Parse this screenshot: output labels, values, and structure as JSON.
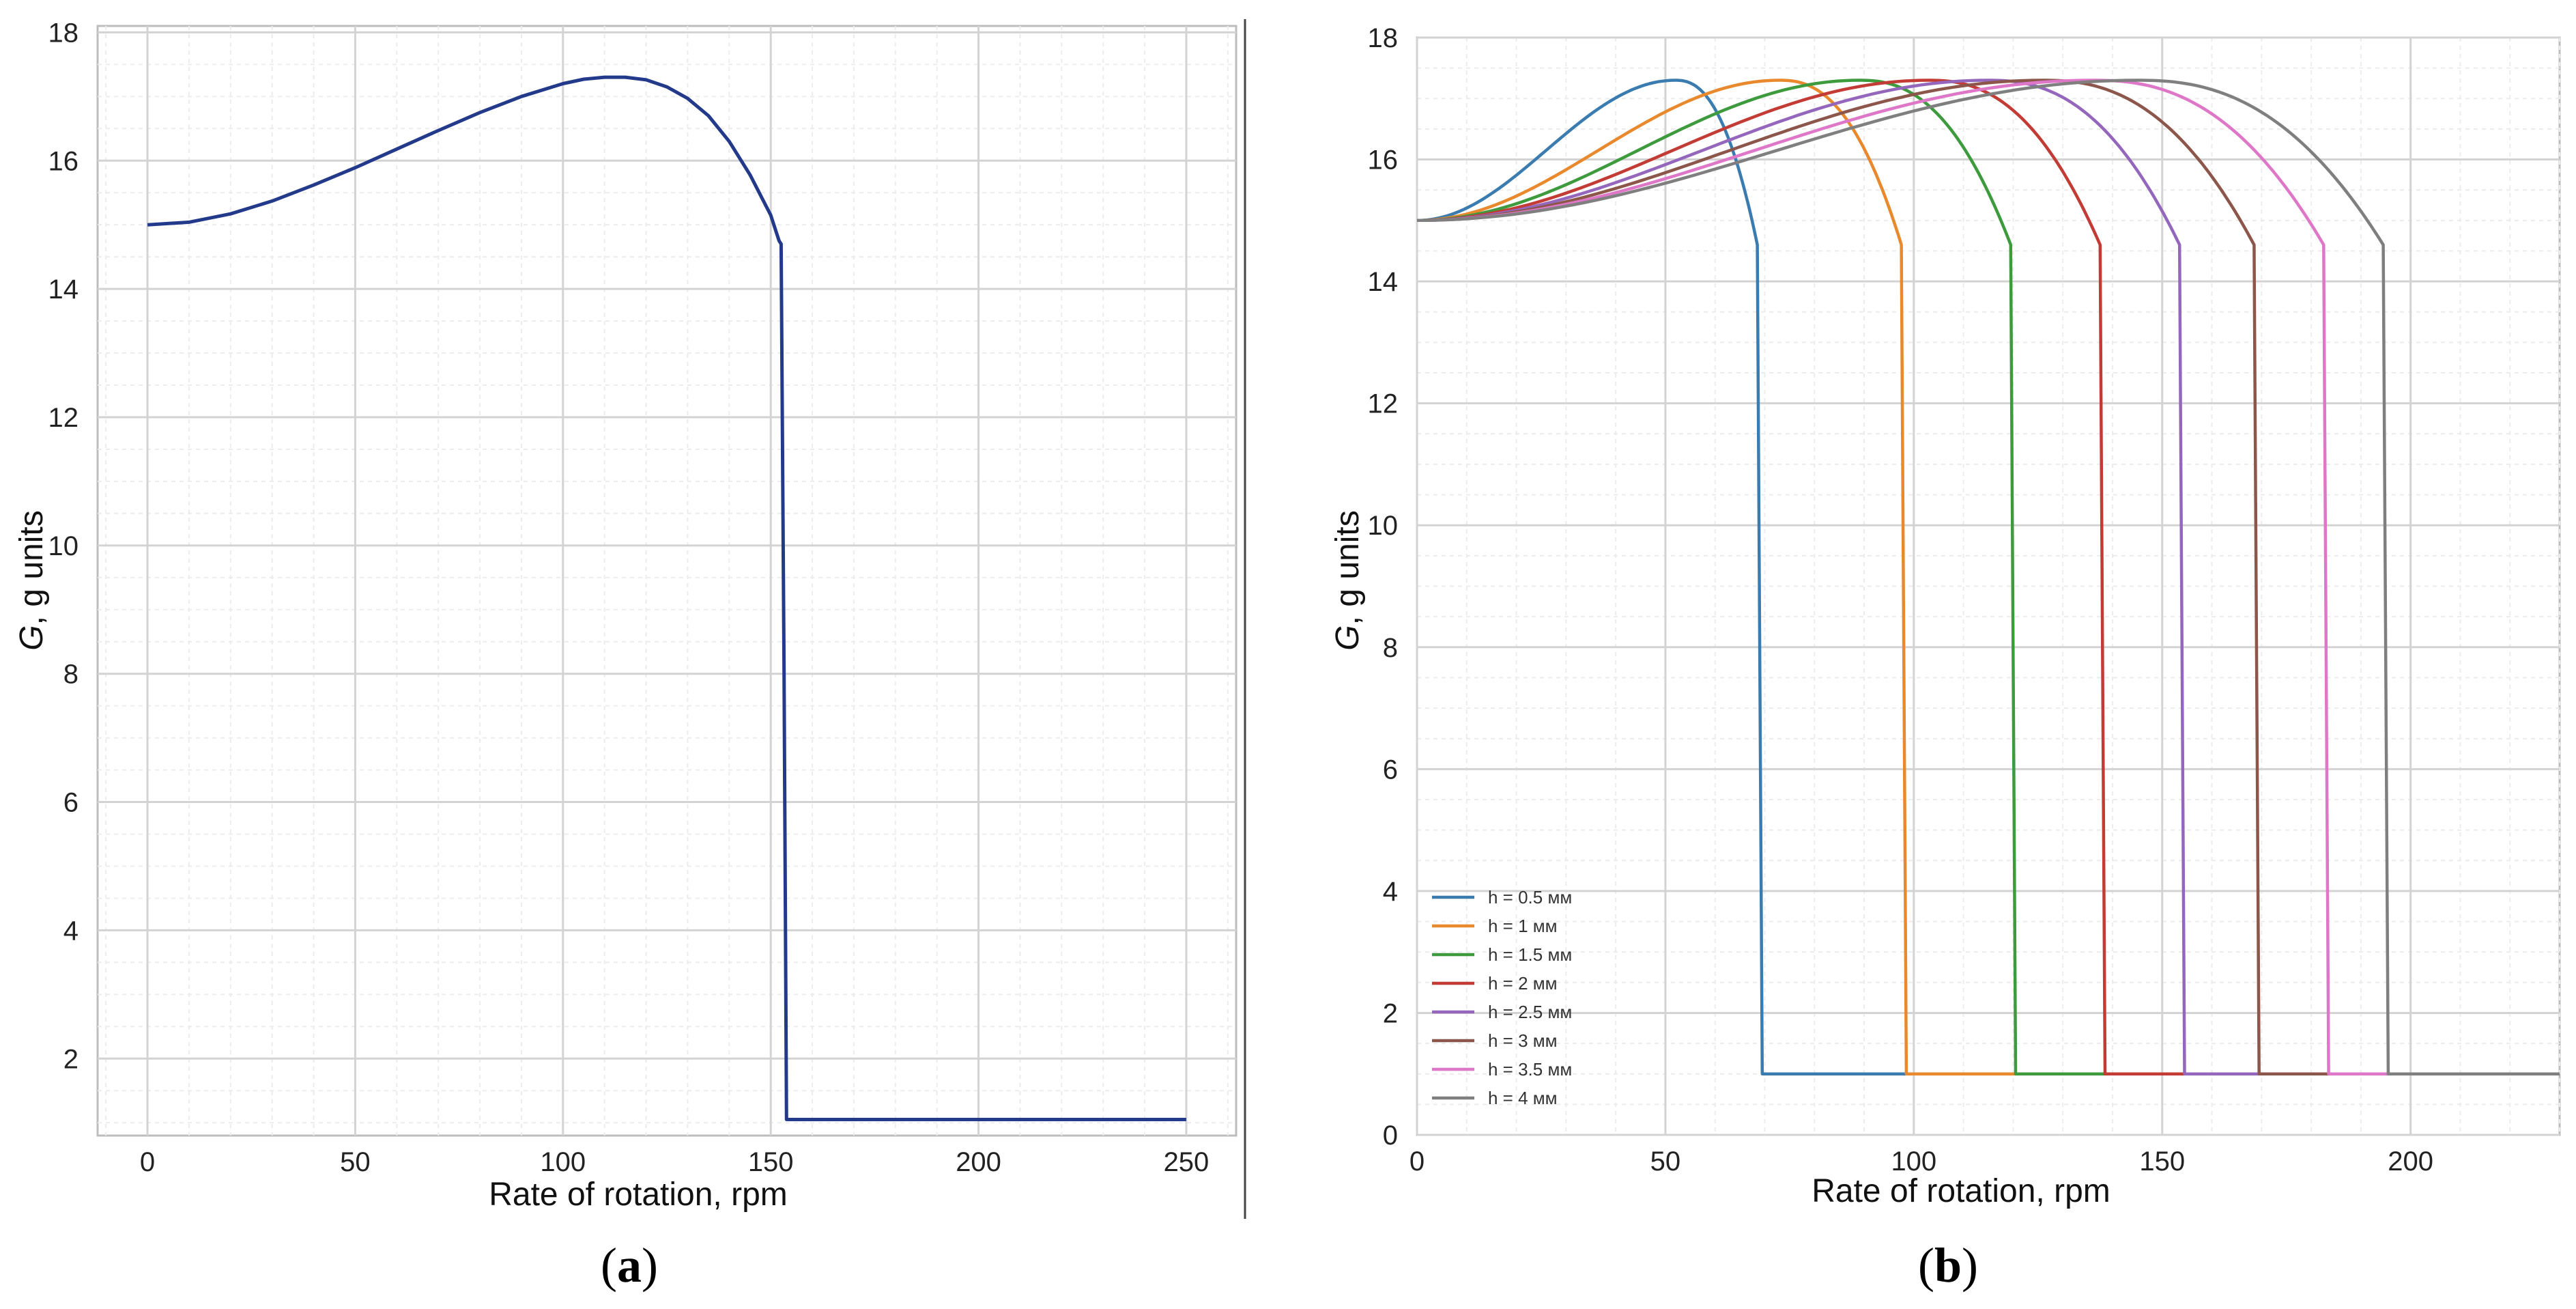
{
  "chart_data": [
    {
      "type": "line",
      "panel": "a",
      "caption_open": "(",
      "caption_letter": "a",
      "caption_close": ")",
      "title": "",
      "xlabel": "Rate of rotation, rpm",
      "ylabel_italic": "G",
      "ylabel_rest": ", g units",
      "xlim": [
        -12,
        262
      ],
      "ylim": [
        0.8,
        18.1
      ],
      "xticks": [
        0,
        50,
        100,
        150,
        200,
        250
      ],
      "yticks": [
        2,
        4,
        6,
        8,
        10,
        12,
        14,
        16,
        18
      ],
      "xtick_labels": [
        "0",
        "50",
        "100",
        "150",
        "200",
        "250"
      ],
      "ytick_labels": [
        "2",
        "4",
        "6",
        "8",
        "10",
        "12",
        "14",
        "16",
        "18"
      ],
      "grid": true,
      "minor_grid": true,
      "series": [
        {
          "name": "G",
          "color": "#233a8a",
          "x": [
            0,
            10,
            20,
            30,
            40,
            50,
            60,
            70,
            80,
            90,
            100,
            105,
            110,
            115,
            120,
            125,
            130,
            135,
            140,
            145,
            150,
            152,
            152.5,
            153.2,
            153.8,
            200,
            250
          ],
          "y": [
            15.0,
            15.04,
            15.17,
            15.37,
            15.62,
            15.89,
            16.18,
            16.47,
            16.75,
            17.0,
            17.2,
            17.27,
            17.3,
            17.3,
            17.26,
            17.15,
            16.97,
            16.7,
            16.3,
            15.78,
            15.15,
            14.75,
            14.7,
            8.0,
            1.05,
            1.05,
            1.05
          ]
        }
      ]
    },
    {
      "type": "line",
      "panel": "b",
      "caption_open": "(",
      "caption_letter": "b",
      "caption_close": ")",
      "title": "",
      "xlabel": "Rate of rotation, rpm",
      "ylabel_italic": "G",
      "ylabel_rest": ", g units",
      "xlim": [
        0,
        230
      ],
      "ylim": [
        0,
        18
      ],
      "xticks": [
        0,
        50,
        100,
        150,
        200
      ],
      "yticks": [
        0,
        2,
        4,
        6,
        8,
        10,
        12,
        14,
        16,
        18
      ],
      "xtick_labels": [
        "0",
        "50",
        "100",
        "150",
        "200"
      ],
      "ytick_labels": [
        "0",
        "2",
        "4",
        "6",
        "8",
        "10",
        "12",
        "14",
        "16",
        "18"
      ],
      "grid": true,
      "minor_grid": true,
      "legend_position": "lower-left",
      "series": [
        {
          "name": "h = 0.5 мм",
          "color": "#3a7bb0",
          "peak": 52,
          "end": 68.5
        },
        {
          "name": "h = 1 мм",
          "color": "#e8892d",
          "peak": 73,
          "end": 97.5
        },
        {
          "name": "h = 1.5 мм",
          "color": "#3d9a3d",
          "peak": 89,
          "end": 119.5
        },
        {
          "name": "h = 2 мм",
          "color": "#c23b35",
          "peak": 103,
          "end": 137.5
        },
        {
          "name": "h = 2.5 мм",
          "color": "#9467bd",
          "peak": 115,
          "end": 153.5
        },
        {
          "name": "h = 3 мм",
          "color": "#8c564b",
          "peak": 126,
          "end": 168.5
        },
        {
          "name": "h = 3.5 мм",
          "color": "#de77c7",
          "peak": 136,
          "end": 182.5
        },
        {
          "name": "h = 4 мм",
          "color": "#7f7f7f",
          "peak": 145,
          "end": 194.5
        }
      ]
    }
  ]
}
